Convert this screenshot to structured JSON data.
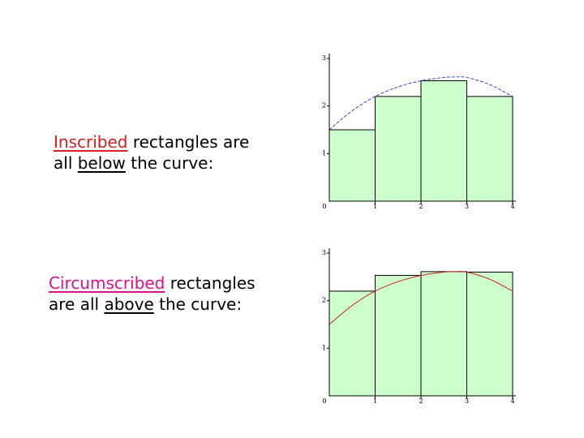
{
  "slide": {
    "inscribed": {
      "line1_word": "Inscribed",
      "line1_rest": " rectangles are",
      "line2_pre": "all ",
      "line2_word": "below",
      "line2_post": " the curve:"
    },
    "circumscribed": {
      "line1_word": "Circumscribed",
      "line1_rest": " rectangles",
      "line2_pre": "are all ",
      "line2_word": "above",
      "line2_post": " the curve:"
    }
  },
  "colors": {
    "rect_fill": "#ccffcc",
    "rect_stroke": "#000000",
    "curve_inscribed": "#3344cc",
    "curve_circumscribed": "#cc2222",
    "axis": "#000000"
  },
  "chart_data": [
    {
      "type": "area",
      "xlim": [
        0,
        4
      ],
      "ylim": [
        0,
        3
      ],
      "x_ticks": [
        "0",
        "1",
        "2",
        "3",
        "4"
      ],
      "y_ticks": [
        "1",
        "2",
        "3"
      ],
      "curve": {
        "x": [
          0,
          0.5,
          1,
          1.5,
          2,
          2.5,
          2.75,
          3,
          3.5,
          4
        ],
        "y": [
          1.5,
          1.9,
          2.2,
          2.4,
          2.53,
          2.6,
          2.61,
          2.6,
          2.45,
          2.2
        ]
      },
      "rectangles": [
        {
          "x0": 0,
          "x1": 1,
          "height": 1.5
        },
        {
          "x0": 1,
          "x1": 2,
          "height": 2.2
        },
        {
          "x0": 2,
          "x1": 3,
          "height": 2.53
        },
        {
          "x0": 3,
          "x1": 4,
          "height": 2.2
        }
      ]
    },
    {
      "type": "area",
      "xlim": [
        0,
        4
      ],
      "ylim": [
        0,
        3
      ],
      "x_ticks": [
        "0",
        "1",
        "2",
        "3",
        "4"
      ],
      "y_ticks": [
        "1",
        "2",
        "3"
      ],
      "curve": {
        "x": [
          0,
          0.5,
          1,
          1.5,
          2,
          2.5,
          2.75,
          3,
          3.5,
          4
        ],
        "y": [
          1.5,
          1.9,
          2.2,
          2.4,
          2.53,
          2.6,
          2.61,
          2.6,
          2.45,
          2.2
        ]
      },
      "rectangles": [
        {
          "x0": 0,
          "x1": 1,
          "height": 2.2
        },
        {
          "x0": 1,
          "x1": 2,
          "height": 2.53
        },
        {
          "x0": 2,
          "x1": 3,
          "height": 2.61
        },
        {
          "x0": 3,
          "x1": 4,
          "height": 2.6
        }
      ]
    }
  ]
}
